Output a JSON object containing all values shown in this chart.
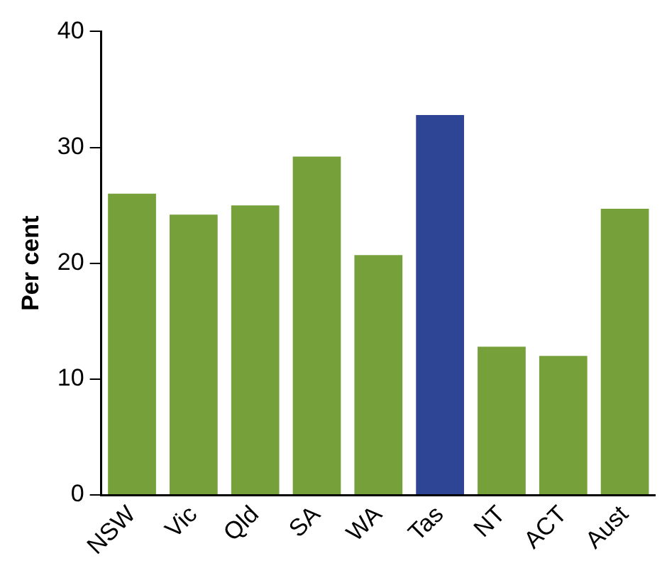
{
  "chart_data": {
    "type": "bar",
    "ylabel": "Per cent",
    "categories": [
      "NSW",
      "Vic",
      "Qld",
      "SA",
      "WA",
      "Tas",
      "NT",
      "ACT",
      "Aust"
    ],
    "values": [
      26.0,
      24.2,
      25.0,
      29.2,
      20.7,
      32.8,
      12.8,
      12.0,
      24.7
    ],
    "colors": [
      "#76a03a",
      "#76a03a",
      "#76a03a",
      "#76a03a",
      "#76a03a",
      "#2e4595",
      "#76a03a",
      "#76a03a",
      "#76a03a"
    ],
    "ylim": [
      0,
      40
    ],
    "yticks": [
      0,
      10,
      20,
      30,
      40
    ],
    "grid": false,
    "legend": false
  }
}
